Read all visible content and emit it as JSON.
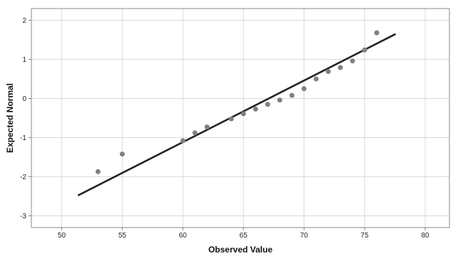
{
  "chart_data": {
    "type": "scatter",
    "title": "",
    "xlabel": "Observed Value",
    "ylabel": "Expected Normal",
    "xlim": [
      47.5,
      82
    ],
    "ylim": [
      -3.3,
      2.3
    ],
    "x_ticks": [
      50,
      55,
      60,
      65,
      70,
      75,
      80
    ],
    "y_ticks": [
      2,
      1,
      0,
      -1,
      -2,
      -3
    ],
    "x_tick_labels": [
      "50",
      "55",
      "60",
      "65",
      "70",
      "75",
      "80"
    ],
    "y_tick_labels": [
      "2",
      "1",
      "0",
      "-1",
      "-2",
      "-3"
    ],
    "grid": true,
    "series": [
      {
        "type": "scatter",
        "x": [
          53,
          55,
          60,
          61,
          62,
          64,
          65,
          66,
          67,
          68,
          69,
          70,
          71,
          72,
          73,
          74,
          75,
          76
        ],
        "y": [
          -1.87,
          -1.42,
          -1.08,
          -0.88,
          -0.73,
          -0.52,
          -0.39,
          -0.27,
          -0.15,
          -0.04,
          0.08,
          0.25,
          0.5,
          0.69,
          0.79,
          0.96,
          1.24,
          1.68
        ]
      },
      {
        "type": "line",
        "x": [
          51.4,
          77.5
        ],
        "y": [
          -2.47,
          1.64
        ]
      }
    ],
    "colors": {
      "points": "#808080",
      "line": "#222222",
      "grid": "#d9d9d9",
      "axis": "#888888"
    }
  }
}
